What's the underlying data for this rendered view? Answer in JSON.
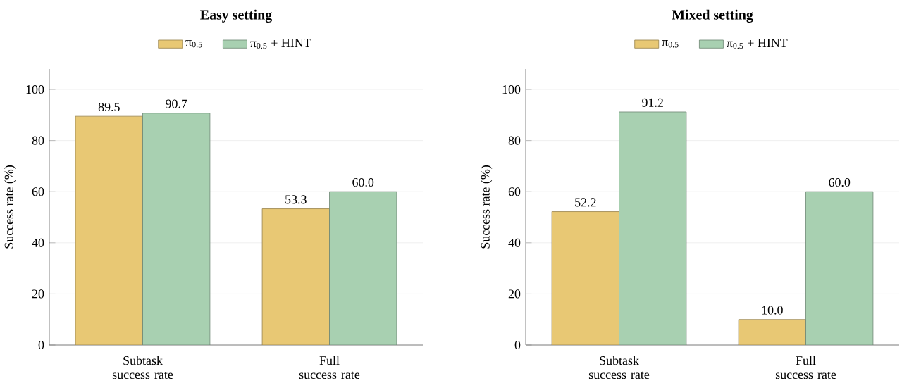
{
  "chart_data": [
    {
      "type": "bar",
      "title": "Easy setting",
      "ylabel": "Success rate (%)",
      "categories": [
        "Subtask success rate",
        "Full success rate"
      ],
      "series": [
        {
          "name": "π$_{0.5}$",
          "color": "#e8c874",
          "values": [
            89.5,
            53.3
          ],
          "value_labels": [
            "89.5",
            "53.3"
          ]
        },
        {
          "name": "π$_{0.5}$ + HINT",
          "color": "#a8d0b1",
          "values": [
            90.7,
            60.0
          ],
          "value_labels": [
            "90.7",
            "60.0"
          ]
        }
      ],
      "ylim": [
        0,
        108
      ],
      "yticks": [
        0,
        20,
        40,
        60,
        80,
        100
      ],
      "grid": "y",
      "legend": "top"
    },
    {
      "type": "bar",
      "title": "Mixed setting",
      "ylabel": "Success rate (%)",
      "categories": [
        "Subtask success rate",
        "Full success rate"
      ],
      "series": [
        {
          "name": "π$_{0.5}$",
          "color": "#e8c874",
          "values": [
            52.2,
            10.0
          ],
          "value_labels": [
            "52.2",
            "10.0"
          ]
        },
        {
          "name": "π$_{0.5}$ + HINT",
          "color": "#a8d0b1",
          "values": [
            91.2,
            60.0
          ],
          "value_labels": [
            "91.2",
            "60.0"
          ]
        }
      ],
      "ylim": [
        0,
        108
      ],
      "yticks": [
        0,
        20,
        40,
        60,
        80,
        100
      ],
      "grid": "y",
      "legend": "top"
    }
  ]
}
